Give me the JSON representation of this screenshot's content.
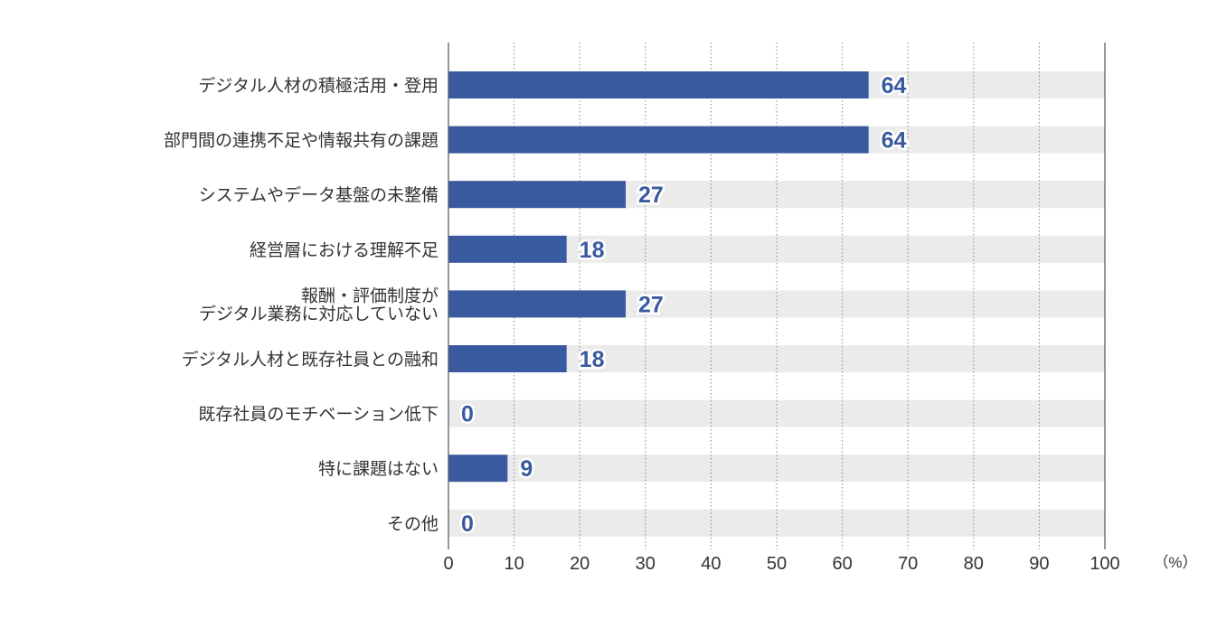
{
  "chart_data": {
    "type": "bar",
    "orientation": "horizontal",
    "categories": [
      [
        "デジタル人材の積極活用・登用"
      ],
      [
        "部門間の連携不足や情報共有の課題"
      ],
      [
        "システムやデータ基盤の未整備"
      ],
      [
        "経営層における理解不足"
      ],
      [
        "報酬・評価制度が",
        "デジタル業務に対応していない"
      ],
      [
        "デジタル人材と既存社員との融和"
      ],
      [
        "既存社員のモチベーション低下"
      ],
      [
        "特に課題はない"
      ],
      [
        "その他"
      ]
    ],
    "values": [
      64,
      64,
      27,
      18,
      27,
      18,
      0,
      9,
      0
    ],
    "data_labels": [
      "64",
      "64",
      "27",
      "18",
      "27",
      "18",
      "0",
      "9",
      "0"
    ],
    "xlim": [
      0,
      100
    ],
    "xticks": [
      "0",
      "10",
      "20",
      "30",
      "40",
      "50",
      "60",
      "70",
      "80",
      "90",
      "100"
    ],
    "unit": "（%）",
    "grid": "vertical dotted",
    "colors": {
      "bar": "#3a5aa0",
      "track": "#ebebeb",
      "label": "#3a5aa0",
      "grid": "#888888",
      "axis": "#555555"
    }
  }
}
